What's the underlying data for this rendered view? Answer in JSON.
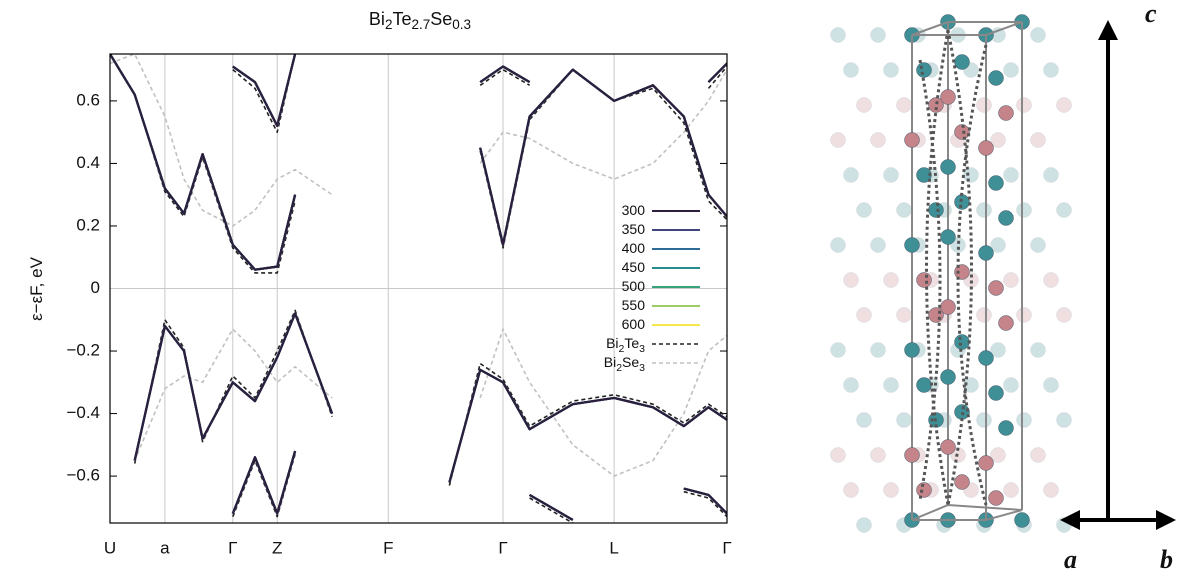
{
  "chart_data": {
    "type": "line",
    "title": "Bi2Te2.7Se0.3",
    "y_label": "ε−εF, eV",
    "xlim": [
      0,
      1
    ],
    "ylim": [
      -0.75,
      0.75
    ],
    "xticks": [
      {
        "value": 0,
        "label": "U"
      },
      {
        "value": 0.089,
        "label": "a"
      },
      {
        "value": 0.199,
        "label": "Γ"
      },
      {
        "value": 0.271,
        "label": "Z"
      },
      {
        "value": 0.451,
        "label": "F"
      },
      {
        "value": 0.637,
        "label": "Γ"
      },
      {
        "value": 0.817,
        "label": "L"
      },
      {
        "value": 1,
        "label": "Γ"
      }
    ],
    "yticks": [
      {
        "value": -0.6,
        "label": "−0.6"
      },
      {
        "value": -0.4,
        "label": "−0.4"
      },
      {
        "value": -0.2,
        "label": "−0.2"
      },
      0,
      0.2,
      0.4,
      0.6
    ],
    "grid": true,
    "legend": "right",
    "x": [
      0,
      0.04,
      0.089,
      0.12,
      0.15,
      0.199,
      0.235,
      0.271,
      0.3,
      0.36,
      0.451,
      0.55,
      0.6,
      0.637,
      0.68,
      0.75,
      0.817,
      0.88,
      0.93,
      0.97,
      1
    ],
    "series": [
      {
        "name": "300",
        "color": "#2d1e3e",
        "dashed": false,
        "bands": [
          [
            0.75,
            0.62,
            0.32,
            0.24,
            0.43,
            0.14,
            0.06,
            0.07,
            0.3,
            null,
            null,
            null,
            0.45,
            0.14,
            0.55,
            0.7,
            0.6,
            0.65,
            0.55,
            0.3,
            0.23
          ],
          [
            null,
            null,
            null,
            null,
            null,
            0.71,
            0.66,
            0.52,
            0.75,
            null,
            null,
            null,
            0.66,
            0.71,
            0.66,
            null,
            null,
            null,
            null,
            0.66,
            0.72
          ],
          [
            null,
            -0.55,
            -0.12,
            -0.2,
            -0.48,
            -0.3,
            -0.36,
            -0.22,
            -0.08,
            -0.4,
            null,
            -0.62,
            -0.26,
            -0.3,
            -0.45,
            -0.37,
            -0.35,
            -0.38,
            -0.44,
            -0.38,
            -0.42
          ],
          [
            null,
            null,
            null,
            null,
            null,
            -0.72,
            -0.54,
            -0.72,
            -0.52,
            null,
            null,
            null,
            null,
            null,
            -0.66,
            -0.74,
            null,
            null,
            -0.64,
            -0.66,
            -0.72
          ]
        ]
      },
      {
        "name": "350",
        "color": "#40447a",
        "dashed": false,
        "bands": [
          [
            0.75,
            0.62,
            0.32,
            0.24,
            0.43,
            0.14,
            0.06,
            0.07,
            0.3,
            null,
            null,
            null,
            0.45,
            0.14,
            0.55,
            0.7,
            0.6,
            0.65,
            0.55,
            0.3,
            0.23
          ],
          [
            null,
            null,
            null,
            null,
            null,
            0.71,
            0.66,
            0.52,
            0.75,
            null,
            null,
            null,
            0.66,
            0.71,
            0.66,
            null,
            null,
            null,
            null,
            0.66,
            0.72
          ],
          [
            null,
            -0.55,
            -0.12,
            -0.2,
            -0.48,
            -0.3,
            -0.36,
            -0.22,
            -0.08,
            -0.4,
            null,
            -0.62,
            -0.26,
            -0.3,
            -0.45,
            -0.37,
            -0.35,
            -0.38,
            -0.44,
            -0.38,
            -0.42
          ],
          [
            null,
            null,
            null,
            null,
            null,
            -0.72,
            -0.54,
            -0.72,
            -0.52,
            null,
            null,
            null,
            null,
            null,
            -0.66,
            -0.74,
            null,
            null,
            -0.64,
            -0.66,
            -0.72
          ]
        ]
      },
      {
        "name": "400",
        "color": "#2e6a96",
        "dashed": false,
        "bands": [
          [
            0.75,
            0.62,
            0.32,
            0.24,
            0.43,
            0.14,
            0.06,
            0.07,
            0.3,
            null,
            null,
            null,
            0.45,
            0.14,
            0.55,
            0.7,
            0.6,
            0.65,
            0.55,
            0.3,
            0.23
          ],
          [
            null,
            null,
            null,
            null,
            null,
            0.71,
            0.66,
            0.52,
            0.75,
            null,
            null,
            null,
            0.66,
            0.71,
            0.66,
            null,
            null,
            null,
            null,
            0.66,
            0.72
          ],
          [
            null,
            -0.55,
            -0.12,
            -0.2,
            -0.48,
            -0.3,
            -0.36,
            -0.22,
            -0.08,
            -0.4,
            null,
            -0.62,
            -0.26,
            -0.3,
            -0.45,
            -0.37,
            -0.35,
            -0.38,
            -0.44,
            -0.38,
            -0.42
          ],
          [
            null,
            null,
            null,
            null,
            null,
            -0.72,
            -0.54,
            -0.72,
            -0.52,
            null,
            null,
            null,
            null,
            null,
            -0.66,
            -0.74,
            null,
            null,
            -0.64,
            -0.66,
            -0.72
          ]
        ]
      },
      {
        "name": "450",
        "color": "#268c8e",
        "dashed": false,
        "bands": [
          [
            0.75,
            0.62,
            0.32,
            0.24,
            0.43,
            0.14,
            0.06,
            0.07,
            0.3,
            null,
            null,
            null,
            0.45,
            0.14,
            0.55,
            0.7,
            0.6,
            0.65,
            0.55,
            0.3,
            0.23
          ],
          [
            null,
            null,
            null,
            null,
            null,
            0.71,
            0.66,
            0.52,
            0.75,
            null,
            null,
            null,
            0.66,
            0.71,
            0.66,
            null,
            null,
            null,
            null,
            0.66,
            0.72
          ],
          [
            null,
            -0.55,
            -0.12,
            -0.2,
            -0.48,
            -0.3,
            -0.36,
            -0.22,
            -0.08,
            -0.4,
            null,
            -0.62,
            -0.26,
            -0.3,
            -0.45,
            -0.37,
            -0.35,
            -0.38,
            -0.44,
            -0.38,
            -0.42
          ],
          [
            null,
            null,
            null,
            null,
            null,
            -0.72,
            -0.54,
            -0.72,
            -0.52,
            null,
            null,
            null,
            null,
            null,
            -0.66,
            -0.74,
            null,
            null,
            -0.64,
            -0.66,
            -0.72
          ]
        ]
      },
      {
        "name": "500",
        "color": "#3aa27b",
        "dashed": false,
        "bands": [
          [
            0.75,
            0.62,
            0.32,
            0.24,
            0.43,
            0.14,
            0.06,
            0.07,
            0.3,
            null,
            null,
            null,
            0.45,
            0.14,
            0.55,
            0.7,
            0.6,
            0.65,
            0.55,
            0.3,
            0.23
          ],
          [
            null,
            null,
            null,
            null,
            null,
            0.71,
            0.66,
            0.52,
            0.75,
            null,
            null,
            null,
            0.66,
            0.71,
            0.66,
            null,
            null,
            null,
            null,
            0.66,
            0.72
          ],
          [
            null,
            -0.55,
            -0.12,
            -0.2,
            -0.48,
            -0.3,
            -0.36,
            -0.22,
            -0.08,
            -0.4,
            null,
            -0.62,
            -0.26,
            -0.3,
            -0.45,
            -0.37,
            -0.35,
            -0.38,
            -0.44,
            -0.38,
            -0.42
          ],
          [
            null,
            null,
            null,
            null,
            null,
            -0.72,
            -0.54,
            -0.72,
            -0.52,
            null,
            null,
            null,
            null,
            null,
            -0.66,
            -0.74,
            null,
            null,
            -0.64,
            -0.66,
            -0.72
          ]
        ]
      },
      {
        "name": "550",
        "color": "#9ccc65",
        "dashed": false,
        "bands": [
          [
            0.75,
            0.62,
            0.32,
            0.24,
            0.43,
            0.14,
            0.06,
            0.07,
            0.3,
            null,
            null,
            null,
            0.45,
            0.14,
            0.55,
            0.7,
            0.6,
            0.65,
            0.55,
            0.3,
            0.23
          ],
          [
            null,
            null,
            null,
            null,
            null,
            0.71,
            0.66,
            0.52,
            0.75,
            null,
            null,
            null,
            0.66,
            0.71,
            0.66,
            null,
            null,
            null,
            null,
            0.66,
            0.72
          ],
          [
            null,
            -0.55,
            -0.12,
            -0.2,
            -0.48,
            -0.3,
            -0.36,
            -0.22,
            -0.08,
            -0.4,
            null,
            -0.62,
            -0.26,
            -0.3,
            -0.45,
            -0.37,
            -0.35,
            -0.38,
            -0.44,
            -0.38,
            -0.42
          ],
          [
            null,
            null,
            null,
            null,
            null,
            -0.72,
            -0.54,
            -0.72,
            -0.52,
            null,
            null,
            null,
            null,
            null,
            -0.66,
            -0.74,
            null,
            null,
            -0.64,
            -0.66,
            -0.72
          ]
        ]
      },
      {
        "name": "600",
        "color": "#f2e84a",
        "dashed": false,
        "bands": [
          [
            0.75,
            0.62,
            0.32,
            0.24,
            0.43,
            0.14,
            0.06,
            0.07,
            0.3,
            null,
            null,
            null,
            0.45,
            0.14,
            0.55,
            0.7,
            0.6,
            0.65,
            0.55,
            0.3,
            0.23
          ],
          [
            null,
            null,
            null,
            null,
            null,
            0.71,
            0.66,
            0.52,
            0.75,
            null,
            null,
            null,
            0.66,
            0.71,
            0.66,
            null,
            null,
            null,
            null,
            0.66,
            0.72
          ],
          [
            null,
            -0.55,
            -0.12,
            -0.2,
            -0.48,
            -0.3,
            -0.36,
            -0.22,
            -0.08,
            -0.4,
            null,
            -0.62,
            -0.26,
            -0.3,
            -0.45,
            -0.37,
            -0.35,
            -0.38,
            -0.44,
            -0.38,
            -0.42
          ],
          [
            null,
            null,
            null,
            null,
            null,
            -0.72,
            -0.54,
            -0.72,
            -0.52,
            null,
            null,
            null,
            null,
            null,
            -0.66,
            -0.74,
            null,
            null,
            -0.64,
            -0.66,
            -0.72
          ]
        ]
      },
      {
        "name": "Bi2Te3",
        "color": "#222222",
        "dashed": true,
        "bands": [
          [
            0.75,
            0.62,
            0.31,
            0.23,
            0.42,
            0.13,
            0.05,
            0.05,
            0.28,
            null,
            null,
            null,
            0.44,
            0.13,
            0.54,
            0.7,
            0.6,
            0.64,
            0.53,
            0.28,
            0.22
          ],
          [
            null,
            null,
            null,
            null,
            null,
            0.7,
            0.64,
            0.5,
            0.75,
            null,
            null,
            null,
            0.65,
            0.7,
            0.65,
            null,
            null,
            null,
            null,
            0.64,
            0.71
          ],
          [
            null,
            -0.56,
            -0.1,
            -0.19,
            -0.49,
            -0.28,
            -0.35,
            -0.2,
            -0.07,
            -0.41,
            null,
            -0.63,
            -0.24,
            -0.29,
            -0.44,
            -0.36,
            -0.34,
            -0.37,
            -0.43,
            -0.37,
            -0.41
          ],
          [
            null,
            null,
            null,
            null,
            null,
            -0.73,
            -0.55,
            -0.73,
            -0.53,
            null,
            null,
            null,
            null,
            null,
            -0.67,
            -0.75,
            null,
            null,
            -0.65,
            -0.67,
            -0.73
          ]
        ]
      },
      {
        "name": "Bi2Se3",
        "color": "#c0c0c0",
        "dashed": true,
        "bands": [
          [
            0.72,
            0.75,
            0.55,
            0.35,
            0.25,
            0.2,
            0.25,
            0.35,
            0.38,
            0.3,
            null,
            null,
            0.4,
            0.5,
            0.48,
            0.4,
            0.35,
            0.4,
            0.5,
            0.6,
            0.7
          ],
          [
            null,
            -0.55,
            -0.32,
            -0.28,
            -0.3,
            -0.13,
            -0.2,
            -0.3,
            -0.25,
            -0.35,
            null,
            null,
            -0.35,
            -0.13,
            -0.3,
            -0.5,
            -0.6,
            -0.55,
            -0.4,
            -0.2,
            -0.15
          ]
        ]
      }
    ],
    "crystal_labels": {
      "c": "c⃗",
      "a": "a⃗",
      "b": "b⃗"
    }
  }
}
